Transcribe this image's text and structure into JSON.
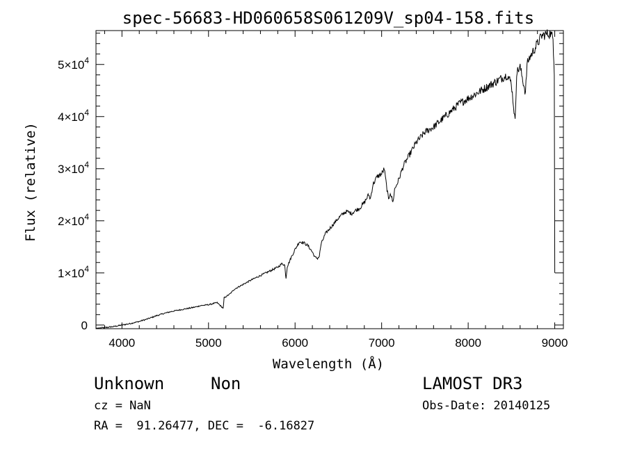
{
  "chart_data": {
    "type": "line",
    "title": "spec-56683-HD060658S061209V_sp04-158.fits",
    "xlabel": "Wavelength (Å)",
    "ylabel": "Flux (relative)",
    "xlim": [
      3700,
      9100
    ],
    "ylim": [
      -700,
      56500
    ],
    "x_ticks": [
      4000,
      5000,
      6000,
      7000,
      8000,
      9000
    ],
    "x_tick_labels": [
      "4000",
      "5000",
      "6000",
      "7000",
      "8000",
      "9000"
    ],
    "y_ticks": [
      0,
      10000,
      20000,
      30000,
      40000,
      50000
    ],
    "y_tick_labels": [
      {
        "mant": "0",
        "exp": ""
      },
      {
        "mant": "1×10",
        "exp": "4"
      },
      {
        "mant": "2×10",
        "exp": "4"
      },
      {
        "mant": "3×10",
        "exp": "4"
      },
      {
        "mant": "4×10",
        "exp": "4"
      },
      {
        "mant": "5×10",
        "exp": "4"
      }
    ],
    "grid": false,
    "series": [
      {
        "x": [
          3700,
          3800,
          3900,
          4000,
          4100,
          4200,
          4300,
          4400,
          4500,
          4600,
          4700,
          4800,
          4860,
          4900,
          5000,
          5100,
          5170,
          5180,
          5250,
          5300,
          5400,
          5500,
          5600,
          5700,
          5800,
          5850,
          5880,
          5895,
          5910,
          5950,
          6000,
          6050,
          6100,
          6150,
          6200,
          6230,
          6260,
          6280,
          6300,
          6350,
          6400,
          6450,
          6500,
          6563,
          6600,
          6650,
          6700,
          6750,
          6800,
          6850,
          6870,
          6900,
          6950,
          7000,
          7030,
          7050,
          7080,
          7100,
          7130,
          7150,
          7200,
          7250,
          7300,
          7350,
          7400,
          7500,
          7600,
          7700,
          7800,
          7900,
          8000,
          8100,
          8200,
          8300,
          8400,
          8450,
          8498,
          8542,
          8560,
          8600,
          8662,
          8680,
          8700,
          8750,
          8800,
          8850,
          8900,
          8950,
          8980,
          8995,
          9000
        ],
        "y": [
          -600,
          -500,
          -300,
          0,
          300,
          700,
          1200,
          1800,
          2300,
          2700,
          3000,
          3300,
          3500,
          3700,
          3900,
          4300,
          3200,
          5200,
          6000,
          6900,
          7800,
          8700,
          9500,
          10300,
          11100,
          11800,
          11500,
          9000,
          11200,
          12800,
          14500,
          16000,
          15800,
          15200,
          14000,
          13000,
          12800,
          13200,
          15500,
          17500,
          18500,
          19500,
          20500,
          21500,
          21800,
          21400,
          22000,
          22500,
          23500,
          25000,
          24200,
          27000,
          28500,
          29000,
          30000,
          27500,
          24000,
          25500,
          23500,
          26000,
          28000,
          30500,
          32000,
          33500,
          35000,
          37000,
          38000,
          39500,
          41000,
          42500,
          43500,
          44500,
          45500,
          46500,
          47500,
          48000,
          46500,
          39000,
          48500,
          49500,
          44500,
          50000,
          51000,
          52500,
          54000,
          55500,
          55800,
          56000,
          55000,
          48000,
          10000
        ]
      }
    ]
  },
  "footer": {
    "object_class": "Unknown",
    "object_subclass": "Non",
    "survey": "LAMOST DR3",
    "cz": "cz = NaN",
    "obs_date": "Obs-Date: 20140125",
    "coords": "RA =  91.26477, DEC =  -6.16827"
  }
}
